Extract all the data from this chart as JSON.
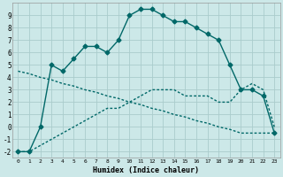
{
  "xlabel": "Humidex (Indice chaleur)",
  "bg_color": "#cce8e8",
  "grid_color": "#aacccc",
  "line_color": "#006868",
  "xlim": [
    -0.5,
    23.5
  ],
  "ylim": [
    -2.5,
    10.0
  ],
  "yticks": [
    -2,
    -1,
    0,
    1,
    2,
    3,
    4,
    5,
    6,
    7,
    8,
    9
  ],
  "xticks": [
    0,
    1,
    2,
    3,
    4,
    5,
    6,
    7,
    8,
    9,
    10,
    11,
    12,
    13,
    14,
    15,
    16,
    17,
    18,
    19,
    20,
    21,
    22,
    23
  ],
  "curve1_x": [
    0,
    1,
    2,
    3,
    4,
    5,
    6,
    7,
    8,
    9,
    10,
    11,
    12,
    13,
    14,
    15,
    16,
    17,
    18,
    19,
    20,
    21,
    22,
    23
  ],
  "curve1_y": [
    -2,
    -2,
    0,
    5,
    4.5,
    5.5,
    6.5,
    6.5,
    6.0,
    7.0,
    9.0,
    9.5,
    9.5,
    9.0,
    8.5,
    8.5,
    8.0,
    7.5,
    7.0,
    5.0,
    3.0,
    3.0,
    2.5,
    -0.5
  ],
  "curve2_x": [
    0,
    1,
    2,
    3,
    4,
    5,
    6,
    7,
    8,
    9,
    10,
    11,
    12,
    13,
    14,
    15,
    16,
    17,
    18,
    19,
    20,
    21,
    22,
    23
  ],
  "curve2_y": [
    4.5,
    4.3,
    4.0,
    3.8,
    3.5,
    3.3,
    3.0,
    2.8,
    2.5,
    2.3,
    2.0,
    1.8,
    1.5,
    1.3,
    1.0,
    0.8,
    0.5,
    0.3,
    0.0,
    -0.2,
    -0.5,
    -0.5,
    -0.5,
    -0.5
  ],
  "curve3_x": [
    0,
    1,
    2,
    3,
    4,
    5,
    6,
    7,
    8,
    9,
    10,
    11,
    12,
    13,
    14,
    15,
    16,
    17,
    18,
    19,
    20,
    21,
    22,
    23
  ],
  "curve3_y": [
    -2,
    -2,
    -1.5,
    -1.0,
    -0.5,
    0.0,
    0.5,
    1.0,
    1.5,
    1.5,
    2.0,
    2.5,
    3.0,
    3.0,
    3.0,
    2.5,
    2.5,
    2.5,
    2.0,
    2.0,
    3.0,
    3.5,
    3.0,
    0.0
  ]
}
